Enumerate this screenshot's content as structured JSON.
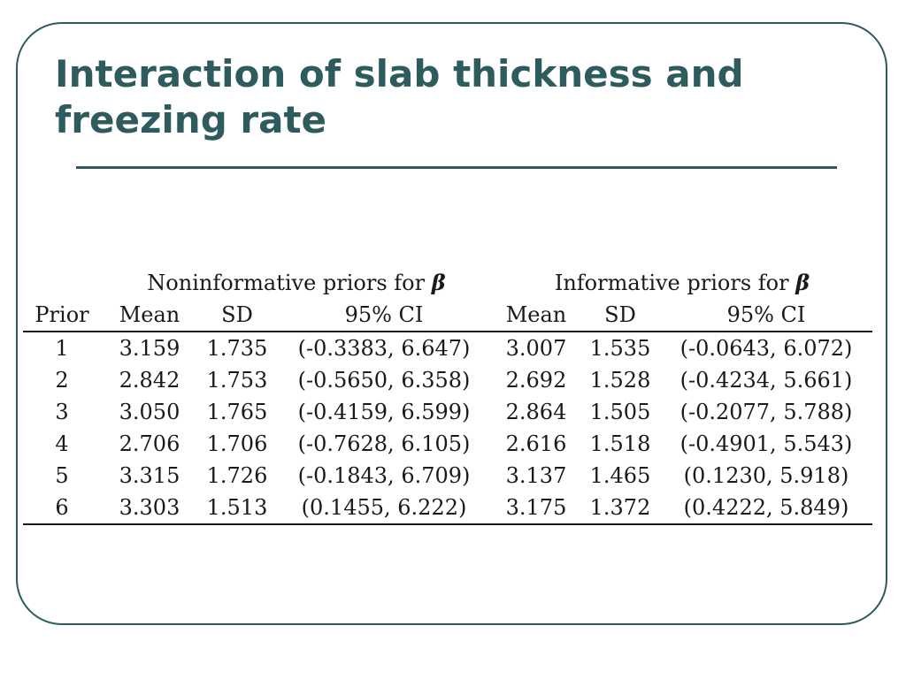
{
  "slide": {
    "title": "Interaction of slab thickness and freezing rate"
  },
  "table": {
    "groups": {
      "noninformative": "Noninformative priors for",
      "informative": "Informative priors for",
      "symbol": "β"
    },
    "headers": [
      "Prior",
      "Mean",
      "SD",
      "95% CI",
      "Mean",
      "SD",
      "95% CI"
    ],
    "rows": [
      [
        "1",
        "3.159",
        "1.735",
        "(-0.3383, 6.647)",
        "3.007",
        "1.535",
        "(-0.0643, 6.072)"
      ],
      [
        "2",
        "2.842",
        "1.753",
        "(-0.5650, 6.358)",
        "2.692",
        "1.528",
        "(-0.4234, 5.661)"
      ],
      [
        "3",
        "3.050",
        "1.765",
        "(-0.4159, 6.599)",
        "2.864",
        "1.505",
        "(-0.2077, 5.788)"
      ],
      [
        "4",
        "2.706",
        "1.706",
        "(-0.7628, 6.105)",
        "2.616",
        "1.518",
        "(-0.4901, 5.543)"
      ],
      [
        "5",
        "3.315",
        "1.726",
        "(-0.1843, 6.709)",
        "3.137",
        "1.465",
        "(0.1230, 5.918)"
      ],
      [
        "6",
        "3.303",
        "1.513",
        "(0.1455, 6.222)",
        "3.175",
        "1.372",
        "(0.4222, 5.849)"
      ]
    ]
  },
  "colors": {
    "accent": "#2e5b5e",
    "text": "#1a1a1a",
    "background": "#ffffff"
  }
}
